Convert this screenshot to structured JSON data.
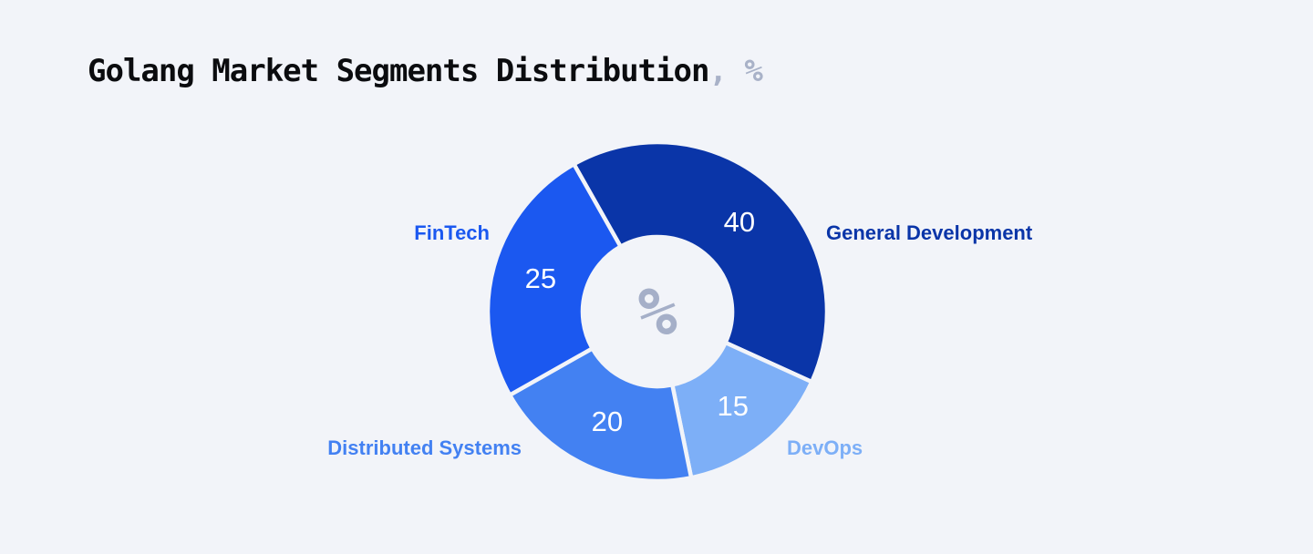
{
  "page": {
    "background": "#F2F4F9"
  },
  "title": {
    "text": "Golang Market Segments Distribution",
    "suffix": ", %"
  },
  "chart_data": {
    "type": "pie",
    "variant": "donut",
    "title": "Golang Market Segments Distribution, %",
    "unit": "%",
    "center_label": "%",
    "legend_position": "labels-around-chart",
    "values_shown_inside_slices": true,
    "segments": [
      {
        "label": "General Development",
        "value": 40,
        "color": "#0A35A8"
      },
      {
        "label": "DevOps",
        "value": 15,
        "color": "#7DAFF7"
      },
      {
        "label": "Distributed Systems",
        "value": 20,
        "color": "#4381F2"
      },
      {
        "label": "FinTech",
        "value": 25,
        "color": "#1B58F0"
      }
    ]
  }
}
